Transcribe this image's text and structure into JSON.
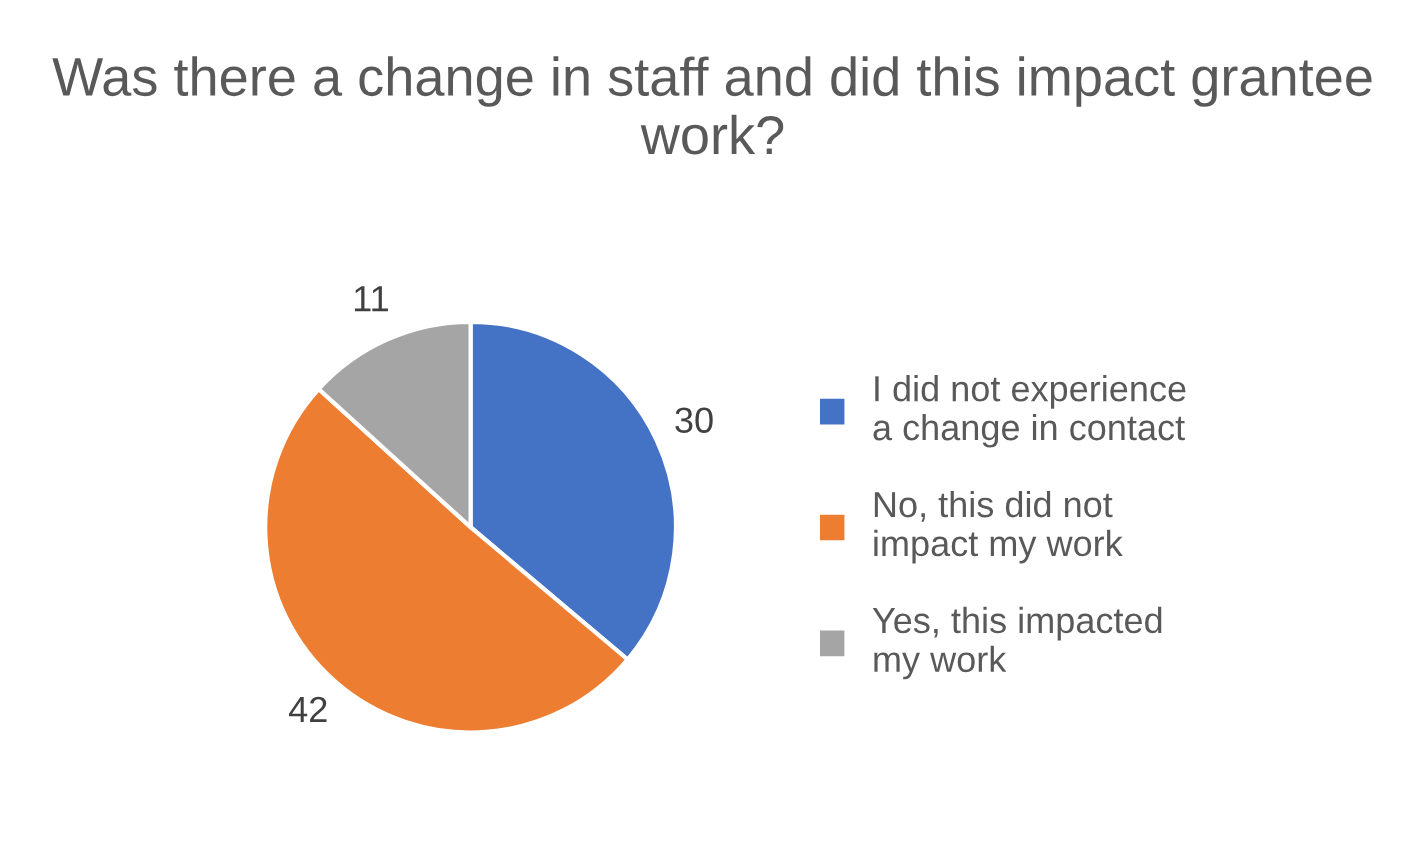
{
  "chart_data": {
    "type": "pie",
    "title": "Was there a change in staff and did this impact grantee work?",
    "categories": [
      "I did not experience a change in contact",
      "No, this did not impact my work",
      "Yes, this impacted my work"
    ],
    "values": [
      30,
      42,
      11
    ],
    "colors": [
      "#4472c4",
      "#ed7d31",
      "#a5a5a5"
    ],
    "data_labels": true,
    "legend": "right"
  }
}
